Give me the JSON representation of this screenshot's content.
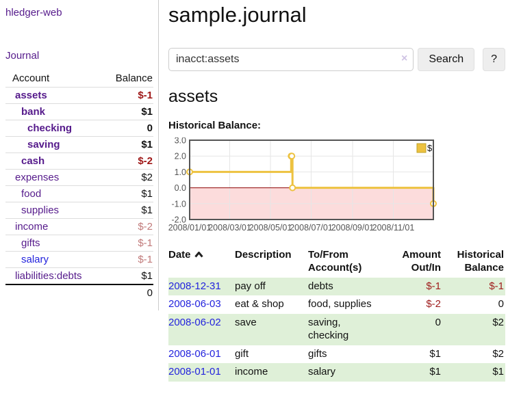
{
  "app": {
    "brand": "hledger-web",
    "nav_journal": "Journal"
  },
  "header": {
    "title": "sample.journal"
  },
  "search": {
    "value": "inacct:assets",
    "clear_icon": "×",
    "search_label": "Search",
    "help_label": "?"
  },
  "account_page": {
    "heading": "assets",
    "chart_label": "Historical Balance:"
  },
  "colors": {
    "link_purple": "#551a8b",
    "link_blue": "#2323dd",
    "negative_strong": "#9e1616",
    "negative_muted": "#c17a7a",
    "row_green": "#dff0d8",
    "series_gold": "#edc240",
    "below_zero_pink": "#fcdcdc",
    "zero_line_red": "#8b0000"
  },
  "sidebar": {
    "header": {
      "account": "Account",
      "balance": "Balance"
    },
    "rows": [
      {
        "name": "assets",
        "balance": "$-1",
        "depth": 1,
        "bold": true,
        "name_color": "purple",
        "balance_color": "neg-strong"
      },
      {
        "name": "bank",
        "balance": "$1",
        "depth": 2,
        "bold": true,
        "name_color": "purple",
        "balance_color": "default"
      },
      {
        "name": "checking",
        "balance": "0",
        "depth": 3,
        "bold": true,
        "name_color": "purple",
        "balance_color": "default"
      },
      {
        "name": "saving",
        "balance": "$1",
        "depth": 3,
        "bold": true,
        "name_color": "purple",
        "balance_color": "default"
      },
      {
        "name": "cash",
        "balance": "$-2",
        "depth": 2,
        "bold": true,
        "name_color": "purple",
        "balance_color": "neg-strong"
      },
      {
        "name": "expenses",
        "balance": "$2",
        "depth": 1,
        "bold": false,
        "name_color": "purple",
        "balance_color": "default"
      },
      {
        "name": "food",
        "balance": "$1",
        "depth": 2,
        "bold": false,
        "name_color": "purple",
        "balance_color": "default"
      },
      {
        "name": "supplies",
        "balance": "$1",
        "depth": 2,
        "bold": false,
        "name_color": "purple",
        "balance_color": "default"
      },
      {
        "name": "income",
        "balance": "$-2",
        "depth": 1,
        "bold": false,
        "name_color": "purple",
        "balance_color": "neg-muted"
      },
      {
        "name": "gifts",
        "balance": "$-1",
        "depth": 2,
        "bold": false,
        "name_color": "purple",
        "balance_color": "neg-muted"
      },
      {
        "name": "salary",
        "balance": "$-1",
        "depth": 2,
        "bold": false,
        "name_color": "blue",
        "balance_color": "neg-muted"
      },
      {
        "name": "liabilities:debts",
        "balance": "$1",
        "depth": 1,
        "bold": false,
        "name_color": "purple",
        "balance_color": "default"
      }
    ],
    "total": "0"
  },
  "chart_data": {
    "type": "line",
    "title": "Historical Balance",
    "step": true,
    "series": [
      {
        "name": "$",
        "color": "#edc240",
        "points": [
          [
            "2008-01-01",
            1
          ],
          [
            "2008-06-01",
            2
          ],
          [
            "2008-06-02",
            2
          ],
          [
            "2008-06-03",
            0
          ],
          [
            "2008-12-31",
            -1
          ]
        ]
      }
    ],
    "xlim": [
      "2008-01-01",
      "2008-12-31"
    ],
    "ylim": [
      -2,
      3
    ],
    "y_ticks": [
      {
        "v": 3,
        "label": "3.0"
      },
      {
        "v": 2,
        "label": "2.0"
      },
      {
        "v": 1,
        "label": "1.0"
      },
      {
        "v": 0,
        "label": "0.0"
      },
      {
        "v": -1,
        "label": "-1.0"
      },
      {
        "v": -2,
        "label": "-2.0"
      }
    ],
    "x_ticks": [
      {
        "date": "2008-01-01",
        "label": "2008/01/01"
      },
      {
        "date": "2008-03-01",
        "label": "2008/03/01"
      },
      {
        "date": "2008-05-01",
        "label": "2008/05/01"
      },
      {
        "date": "2008-07-01",
        "label": "2008/07/01"
      },
      {
        "date": "2008-09-01",
        "label": "2008/09/01"
      },
      {
        "date": "2008-11-01",
        "label": "2008/11/01"
      }
    ],
    "negative_fill": "#fcdcdc",
    "zero_line_color": "#8b0000",
    "grid": true,
    "legend": {
      "label": "$",
      "position": "top-right"
    }
  },
  "register": {
    "columns": {
      "date": "Date",
      "description": "Description",
      "tofrom": "To/From\nAccount(s)",
      "amount": "Amount\nOut/In",
      "balance": "Historical\nBalance"
    },
    "rows": [
      {
        "date": "2008-12-31",
        "description": "pay off",
        "tofrom": "debts",
        "amount": "$-1",
        "amount_negative": true,
        "balance": "$-1",
        "balance_negative": true
      },
      {
        "date": "2008-06-03",
        "description": "eat & shop",
        "tofrom": "food, supplies",
        "amount": "$-2",
        "amount_negative": true,
        "balance": "0",
        "balance_negative": false
      },
      {
        "date": "2008-06-02",
        "description": "save",
        "tofrom": "saving,\nchecking",
        "amount": "0",
        "amount_negative": false,
        "balance": "$2",
        "balance_negative": false
      },
      {
        "date": "2008-06-01",
        "description": "gift",
        "tofrom": "gifts",
        "amount": "$1",
        "amount_negative": false,
        "balance": "$2",
        "balance_negative": false
      },
      {
        "date": "2008-01-01",
        "description": "income",
        "tofrom": "salary",
        "amount": "$1",
        "amount_negative": false,
        "balance": "$1",
        "balance_negative": false
      }
    ]
  }
}
